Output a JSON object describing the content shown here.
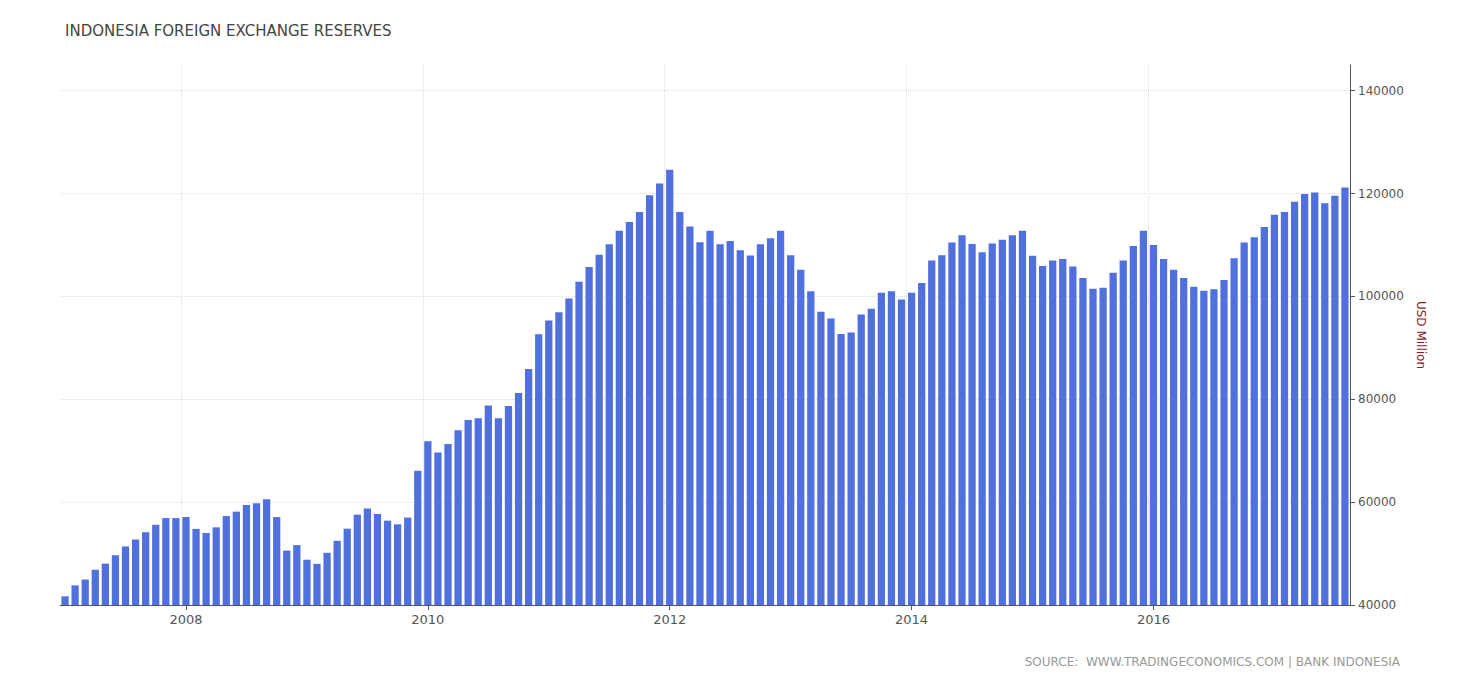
{
  "chart_data": {
    "type": "bar",
    "title": "INDONESIA FOREIGN EXCHANGE RESERVES",
    "ylabel": "USD Million",
    "annotations": [
      "SOURCE:  WWW.TRADINGECONOMICS.COM | BANK INDONESIA"
    ],
    "categories": [
      null,
      null,
      null,
      null,
      null,
      null,
      null,
      null,
      null,
      null,
      null,
      null,
      "2008",
      null,
      null,
      null,
      null,
      null,
      null,
      null,
      null,
      null,
      null,
      null,
      null,
      null,
      null,
      null,
      null,
      null,
      null,
      null,
      null,
      null,
      null,
      null,
      "2010",
      null,
      null,
      null,
      null,
      null,
      null,
      null,
      null,
      null,
      null,
      null,
      null,
      null,
      null,
      null,
      null,
      null,
      null,
      null,
      null,
      null,
      null,
      null,
      "2012",
      null,
      null,
      null,
      null,
      null,
      null,
      null,
      null,
      null,
      null,
      null,
      null,
      null,
      null,
      null,
      null,
      null,
      null,
      null,
      null,
      null,
      null,
      null,
      "2014",
      null,
      null,
      null,
      null,
      null,
      null,
      null,
      null,
      null,
      null,
      null,
      null,
      null,
      null,
      null,
      null,
      null,
      null,
      null,
      null,
      null,
      null,
      null,
      "2016",
      null,
      null,
      null,
      null,
      null,
      null,
      null,
      null,
      null,
      null,
      null,
      null,
      null,
      null,
      null,
      null,
      null,
      null,
      null
    ],
    "values": [
      41690,
      43820,
      44950,
      46850,
      48040,
      49680,
      51390,
      52730,
      54150,
      55600,
      56900,
      56900,
      57110,
      54800,
      54000,
      55100,
      57300,
      58150,
      59450,
      59800,
      60560,
      57090,
      50580,
      51640,
      48800,
      48000,
      50150,
      52480,
      54840,
      57560,
      58760,
      57680,
      56400,
      55690,
      57000,
      66100,
      71820,
      69670,
      71300,
      74000,
      75990,
      76300,
      78800,
      76300,
      78700,
      81200,
      85900,
      92670,
      95310,
      96900,
      99600,
      102840,
      105700,
      108100,
      110130,
      112780,
      114490,
      116400,
      119660,
      121950,
      124640,
      116400,
      113610,
      110520,
      112780,
      110130,
      110800,
      109000,
      107970,
      110140,
      111300,
      112780,
      108000,
      105200,
      101000,
      97000,
      95700,
      92700,
      93000,
      96500,
      97590,
      100700,
      101000,
      99390,
      100700,
      102600,
      107000,
      108000,
      110500,
      111900,
      110200,
      108600,
      110300,
      111000,
      111900,
      112780,
      107900,
      105900,
      107000,
      107300,
      105800,
      103600,
      101500,
      101700,
      104600,
      107000,
      109800,
      112780,
      110000,
      107300,
      105200,
      103600,
      101900,
      101100,
      101400,
      103200,
      107400,
      110500,
      111500,
      113500,
      115900,
      116400,
      118400,
      119900,
      120200,
      118100,
      119600,
      121200
    ],
    "ylim": [
      40000,
      145000
    ],
    "yticks": [
      40000,
      60000,
      80000,
      100000,
      120000,
      140000
    ],
    "grid": true
  }
}
